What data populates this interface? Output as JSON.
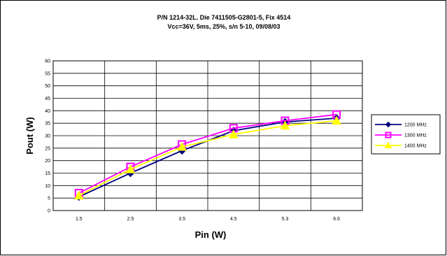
{
  "chart_data": {
    "type": "line",
    "title": "P/N 1214-32L. Die 7411505-G2801-5, Fix 4514",
    "subtitle": "Vcc=36V, 5ms, 25%, s/n 5-10, 09/08/03",
    "xlabel": "Pin (W)",
    "ylabel": "Pout (W)",
    "categories": [
      "1.5",
      "2.5",
      "3.5",
      "4.5",
      "5.3",
      "6.6"
    ],
    "y_ticks": [
      "0",
      "5",
      "10",
      "15",
      "20",
      "25",
      "30",
      "35",
      "40",
      "45",
      "50",
      "55",
      "60"
    ],
    "ylim": [
      0,
      60
    ],
    "grid": true,
    "legend_position": "right",
    "series": [
      {
        "name": "1200 MHz",
        "values": [
          5.5,
          15,
          24,
          32,
          35.5,
          37
        ],
        "color": "#000080",
        "marker": "diamond"
      },
      {
        "name": "1300 MHz",
        "values": [
          7,
          17.5,
          26.5,
          33,
          36,
          38.5
        ],
        "color": "#FF00FF",
        "marker": "square"
      },
      {
        "name": "1400 MHz",
        "values": [
          6,
          16.5,
          25.5,
          30.5,
          34,
          36
        ],
        "color": "#FFFF00",
        "marker": "triangle"
      }
    ]
  }
}
